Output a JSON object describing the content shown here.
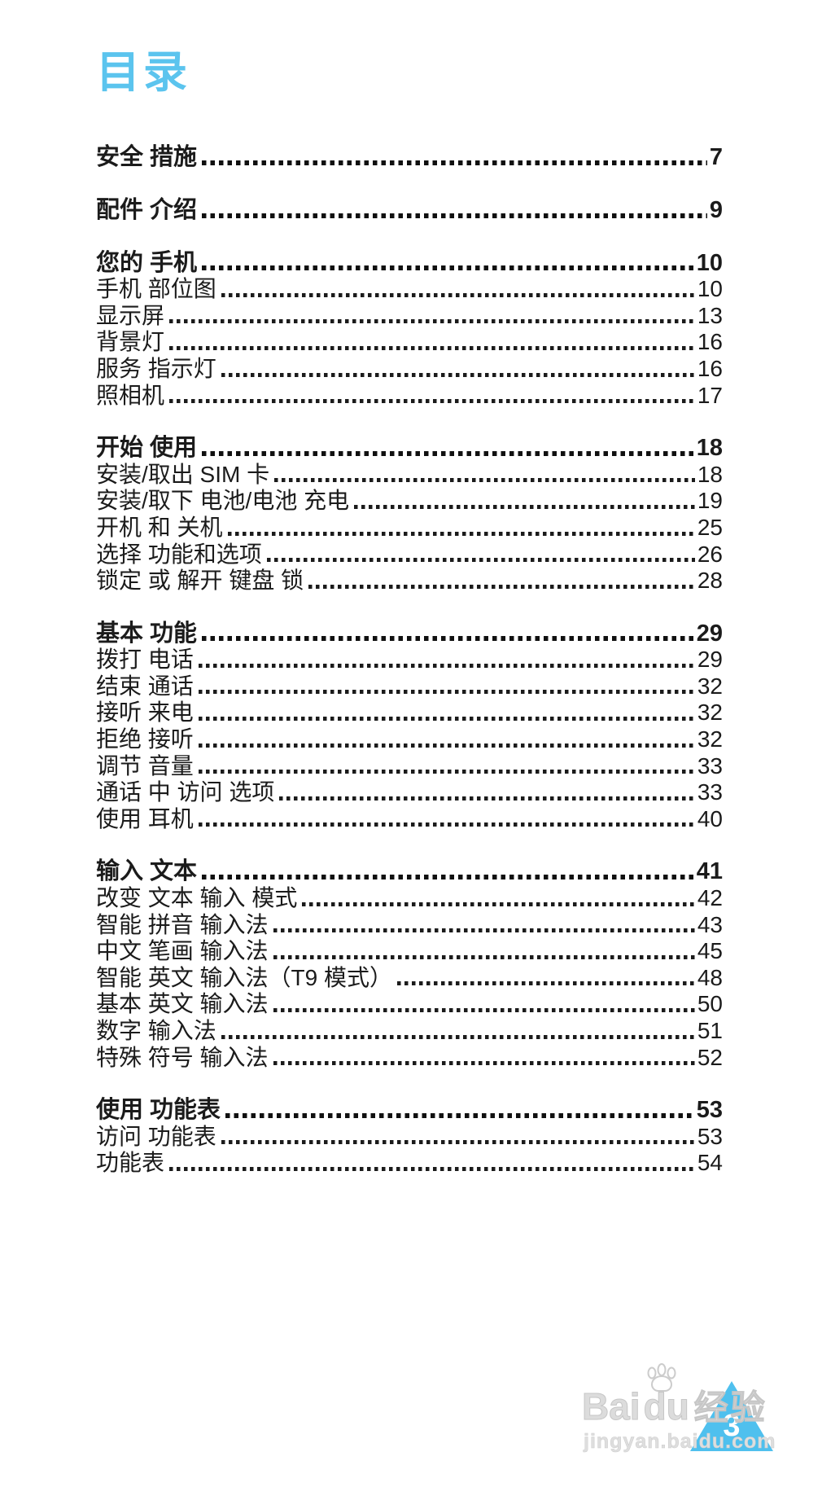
{
  "page": {
    "title": "目录",
    "title_color": "#5bc4ee",
    "text_color": "#1b1b1b"
  },
  "toc": {
    "groups": [
      {
        "items": [
          {
            "label": "安全 措施",
            "page": "7",
            "bold": true
          }
        ]
      },
      {
        "items": [
          {
            "label": "配件 介绍",
            "page": "9",
            "bold": true
          }
        ]
      },
      {
        "items": [
          {
            "label": "您的 手机",
            "page": "10",
            "bold": true
          },
          {
            "label": "手机 部位图",
            "page": "10"
          },
          {
            "label": "显示屏",
            "page": "13"
          },
          {
            "label": "背景灯",
            "page": "16"
          },
          {
            "label": "服务 指示灯",
            "page": "16"
          },
          {
            "label": "照相机",
            "page": "17"
          }
        ]
      },
      {
        "items": [
          {
            "label": "开始 使用",
            "page": "18",
            "bold": true
          },
          {
            "label": "安装/取出 SIM 卡",
            "page": "18"
          },
          {
            "label": "安装/取下 电池/电池 充电",
            "page": "19"
          },
          {
            "label": "开机 和 关机",
            "page": "25"
          },
          {
            "label": "选择 功能和选项",
            "page": "26"
          },
          {
            "label": "锁定 或 解开 键盘 锁",
            "page": "28"
          }
        ]
      },
      {
        "items": [
          {
            "label": "基本 功能",
            "page": "29",
            "bold": true
          },
          {
            "label": "拨打 电话",
            "page": "29"
          },
          {
            "label": "结束 通话",
            "page": "32"
          },
          {
            "label": "接听 来电",
            "page": "32"
          },
          {
            "label": "拒绝 接听",
            "page": "32"
          },
          {
            "label": "调节 音量",
            "page": "33"
          },
          {
            "label": "通话 中 访问 选项",
            "page": "33"
          },
          {
            "label": "使用 耳机",
            "page": "40"
          }
        ]
      },
      {
        "items": [
          {
            "label": "输入 文本",
            "page": "41",
            "bold": true
          },
          {
            "label": "改变 文本 输入 模式",
            "page": "42"
          },
          {
            "label": "智能 拼音 输入法",
            "page": "43"
          },
          {
            "label": "中文 笔画 输入法",
            "page": "45"
          },
          {
            "label": "智能 英文 输入法（T9 模式）",
            "page": "48"
          },
          {
            "label": "基本 英文 输入法",
            "page": "50"
          },
          {
            "label": "数字 输入法",
            "page": "51"
          },
          {
            "label": "特殊 符号 输入法",
            "page": "52"
          }
        ]
      },
      {
        "items": [
          {
            "label": "使用 功能表",
            "page": "53",
            "bold": true
          },
          {
            "label": "访问 功能表",
            "page": "53"
          },
          {
            "label": "功能表",
            "page": "54"
          }
        ]
      }
    ]
  },
  "watermark": {
    "brand_bai": "Bai",
    "brand_du": "du",
    "brand_suffix": "经验",
    "url": "jingyan.baidu.com",
    "badge_number": "3",
    "triangle_color": "#4fc0ee",
    "text_color": "#dcdcdc"
  }
}
